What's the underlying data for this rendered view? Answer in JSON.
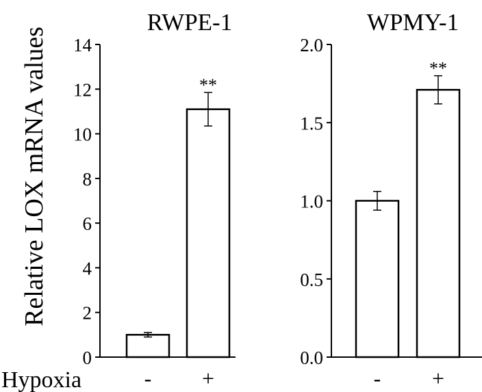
{
  "ylabel": "Relative LOX mRNA values",
  "condition_label": "Hypoxia",
  "chart_data": [
    {
      "type": "bar",
      "title": "RWPE-1",
      "ylabel": "Relative LOX mRNA values",
      "xlabel": "",
      "categories": [
        "-",
        "+"
      ],
      "values": [
        1.0,
        11.1
      ],
      "errors": [
        0.1,
        0.75
      ],
      "annotations": [
        "",
        "**"
      ],
      "ylim": [
        0,
        14
      ],
      "yticks": [
        "0",
        "2",
        "4",
        "6",
        "8",
        "10",
        "12",
        "14"
      ],
      "ytick_values": [
        0,
        2,
        4,
        6,
        8,
        10,
        12,
        14
      ],
      "grid": false,
      "bar_fill": "#ffffff",
      "bar_stroke": "#000000"
    },
    {
      "type": "bar",
      "title": "WPMY-1",
      "ylabel": "",
      "xlabel": "",
      "categories": [
        "-",
        "+"
      ],
      "values": [
        1.0,
        1.71
      ],
      "errors": [
        0.06,
        0.09
      ],
      "annotations": [
        "",
        "**"
      ],
      "ylim": [
        0,
        2.0
      ],
      "yticks": [
        "0.0",
        "0.5",
        "1.0",
        "1.5",
        "2.0"
      ],
      "ytick_values": [
        0.0,
        0.5,
        1.0,
        1.5,
        2.0
      ],
      "grid": false,
      "bar_fill": "#ffffff",
      "bar_stroke": "#000000"
    }
  ]
}
